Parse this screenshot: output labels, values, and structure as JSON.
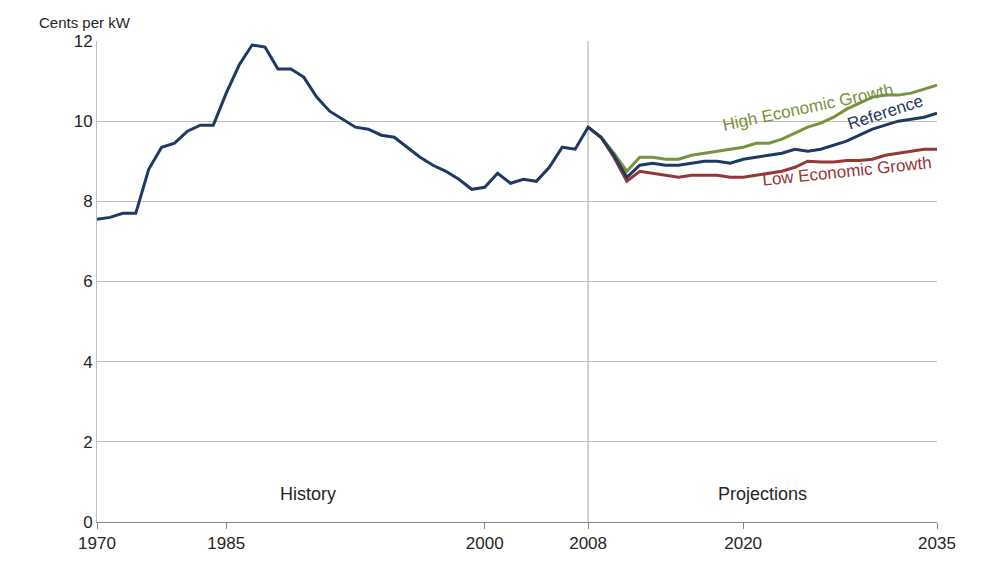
{
  "chart_data": {
    "type": "line",
    "y_label": "Cents per kW",
    "categories": [
      "1970",
      null,
      null,
      null,
      null,
      null,
      null,
      null,
      null,
      null,
      "1985",
      null,
      null,
      null,
      null,
      null,
      null,
      null,
      null,
      null,
      null,
      null,
      null,
      null,
      null,
      null,
      null,
      null,
      null,
      null,
      "2000",
      null,
      null,
      null,
      null,
      null,
      null,
      null,
      "2008",
      null,
      null,
      null,
      null,
      null,
      null,
      null,
      null,
      null,
      null,
      null,
      "2020",
      null,
      null,
      null,
      null,
      null,
      null,
      null,
      null,
      null,
      null,
      null,
      null,
      null,
      null,
      "2035"
    ],
    "series": [
      {
        "name": "High Economic Growth",
        "color": "#77933c",
        "values": [
          null,
          null,
          null,
          null,
          null,
          null,
          null,
          null,
          null,
          null,
          null,
          null,
          null,
          null,
          null,
          null,
          null,
          null,
          null,
          null,
          null,
          null,
          null,
          null,
          null,
          null,
          null,
          null,
          null,
          null,
          null,
          null,
          null,
          null,
          null,
          null,
          null,
          null,
          9.85,
          9.6,
          9.2,
          8.75,
          9.1,
          9.1,
          9.05,
          9.05,
          9.15,
          9.2,
          9.25,
          9.3,
          9.35,
          9.45,
          9.45,
          9.55,
          9.7,
          9.85,
          9.95,
          10.1,
          10.3,
          10.45,
          10.6,
          10.65,
          10.65,
          10.7,
          10.8,
          10.9
        ]
      },
      {
        "name": "Low Economic Growth",
        "color": "#953735",
        "values": [
          null,
          null,
          null,
          null,
          null,
          null,
          null,
          null,
          null,
          null,
          null,
          null,
          null,
          null,
          null,
          null,
          null,
          null,
          null,
          null,
          null,
          null,
          null,
          null,
          null,
          null,
          null,
          null,
          null,
          null,
          null,
          null,
          null,
          null,
          null,
          null,
          null,
          null,
          9.85,
          9.6,
          9.1,
          8.5,
          8.75,
          8.7,
          8.65,
          8.6,
          8.65,
          8.65,
          8.65,
          8.6,
          8.6,
          8.65,
          8.7,
          8.75,
          8.85,
          9.0,
          8.98,
          8.98,
          9.02,
          9.02,
          9.05,
          9.15,
          9.2,
          9.25,
          9.3,
          9.3
        ]
      },
      {
        "name": "Reference",
        "color": "#1f3864",
        "values": [
          7.55,
          7.6,
          7.7,
          7.7,
          8.8,
          9.35,
          9.45,
          9.75,
          9.9,
          9.9,
          10.7,
          11.4,
          11.9,
          11.85,
          11.3,
          11.3,
          11.1,
          10.6,
          10.25,
          10.05,
          9.85,
          9.8,
          9.65,
          9.6,
          9.35,
          9.1,
          8.9,
          8.75,
          8.55,
          8.3,
          8.35,
          8.7,
          8.45,
          8.55,
          8.5,
          8.85,
          9.35,
          9.3,
          9.85,
          9.6,
          9.15,
          8.6,
          8.9,
          8.95,
          8.9,
          8.9,
          8.95,
          9.0,
          9.0,
          8.95,
          9.05,
          9.1,
          9.15,
          9.2,
          9.3,
          9.25,
          9.3,
          9.4,
          9.5,
          9.65,
          9.8,
          9.9,
          10.0,
          10.05,
          10.1,
          10.2
        ]
      }
    ],
    "annotations": [
      "History",
      "Projections"
    ],
    "ylim": [
      0,
      12
    ],
    "yticks": [
      0,
      2,
      4,
      6,
      8,
      10,
      12
    ],
    "grid": true
  }
}
